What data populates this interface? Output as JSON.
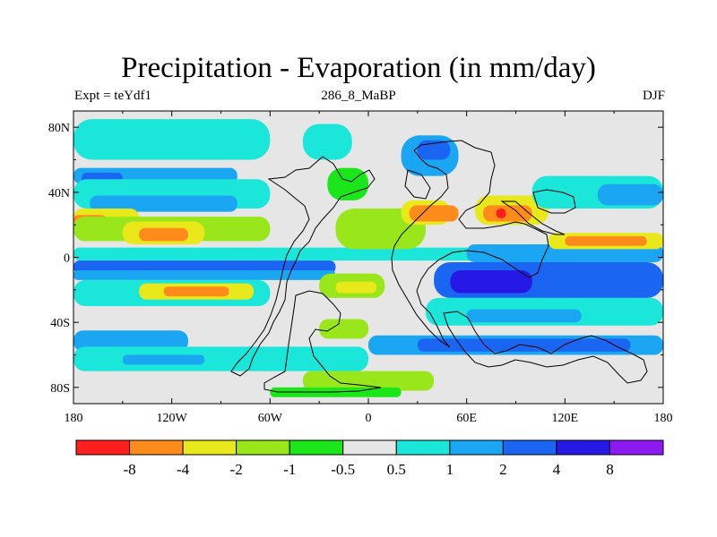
{
  "chart_data": {
    "type": "heatmap",
    "title": "Precipitation - Evaporation (in mm/day)",
    "left_string": "Expt = teYdf1",
    "center_string": "286_8_MaBP",
    "right_string": "DJF",
    "x_ticks": [
      {
        "value": -180,
        "label": "180"
      },
      {
        "value": -120,
        "label": "120W"
      },
      {
        "value": -60,
        "label": "60W"
      },
      {
        "value": 0,
        "label": "0"
      },
      {
        "value": 60,
        "label": "60E"
      },
      {
        "value": 120,
        "label": "120E"
      },
      {
        "value": 180,
        "label": "180"
      }
    ],
    "y_ticks": [
      {
        "value": 80,
        "label": "80N"
      },
      {
        "value": 40,
        "label": "40N"
      },
      {
        "value": 0,
        "label": "0"
      },
      {
        "value": -40,
        "label": "40S"
      },
      {
        "value": -80,
        "label": "80S"
      }
    ],
    "xlim": [
      -180,
      180
    ],
    "ylim": [
      -90,
      90
    ],
    "colorbar": {
      "colors": [
        "#ff1f1f",
        "#ff8c1a",
        "#e8e81a",
        "#99e61a",
        "#1ae61a",
        "#e6e6e6",
        "#1ae6d9",
        "#1aa6f2",
        "#1a66f2",
        "#2619e6",
        "#8c19f2"
      ],
      "labels": [
        "-8",
        "-4",
        "-2",
        "-1",
        "-0.5",
        "0.5",
        "1",
        "2",
        "4",
        "8"
      ]
    },
    "field": {
      "background": "#e6e6e6",
      "description_note": "",
      "regions": [
        {
          "level": "1",
          "lon": [
            -180,
            -60
          ],
          "lat": [
            60,
            85
          ]
        },
        {
          "level": "2",
          "lon": [
            -180,
            -80
          ],
          "lat": [
            45,
            55
          ]
        },
        {
          "level": "4",
          "lon": [
            -175,
            -150
          ],
          "lat": [
            45,
            52
          ]
        },
        {
          "level": "1",
          "lon": [
            -180,
            -60
          ],
          "lat": [
            30,
            48
          ]
        },
        {
          "level": "2",
          "lon": [
            -170,
            -80
          ],
          "lat": [
            28,
            38
          ]
        },
        {
          "level": "-2",
          "lon": [
            -180,
            -140
          ],
          "lat": [
            18,
            30
          ]
        },
        {
          "level": "-4",
          "lon": [
            -180,
            -160
          ],
          "lat": [
            20,
            26
          ]
        },
        {
          "level": "-1",
          "lon": [
            -180,
            -60
          ],
          "lat": [
            10,
            25
          ]
        },
        {
          "level": "-2",
          "lon": [
            -150,
            -100
          ],
          "lat": [
            8,
            22
          ]
        },
        {
          "level": "-4",
          "lon": [
            -140,
            -110
          ],
          "lat": [
            10,
            18
          ]
        },
        {
          "level": "1",
          "lon": [
            -180,
            180
          ],
          "lat": [
            -2,
            6
          ]
        },
        {
          "level": "4",
          "lon": [
            -180,
            -20
          ],
          "lat": [
            -10,
            -2
          ]
        },
        {
          "level": "2",
          "lon": [
            -180,
            -20
          ],
          "lat": [
            -14,
            -8
          ]
        },
        {
          "level": "1",
          "lon": [
            -180,
            -60
          ],
          "lat": [
            -30,
            -14
          ]
        },
        {
          "level": "-2",
          "lon": [
            -140,
            -70
          ],
          "lat": [
            -26,
            -16
          ]
        },
        {
          "level": "-4",
          "lon": [
            -125,
            -85
          ],
          "lat": [
            -24,
            -18
          ]
        },
        {
          "level": "2",
          "lon": [
            -180,
            -110
          ],
          "lat": [
            -58,
            -45
          ]
        },
        {
          "level": "1",
          "lon": [
            -180,
            0
          ],
          "lat": [
            -70,
            -55
          ]
        },
        {
          "level": "2",
          "lon": [
            -150,
            -100
          ],
          "lat": [
            -66,
            -60
          ]
        },
        {
          "level": "-1",
          "lon": [
            -30,
            10
          ],
          "lat": [
            -25,
            -10
          ]
        },
        {
          "level": "-2",
          "lon": [
            -20,
            5
          ],
          "lat": [
            -22,
            -15
          ]
        },
        {
          "level": "-1",
          "lon": [
            -30,
            0
          ],
          "lat": [
            -50,
            -38
          ]
        },
        {
          "level": "1",
          "lon": [
            -40,
            -10
          ],
          "lat": [
            60,
            82
          ]
        },
        {
          "level": "-0.5",
          "lon": [
            -25,
            0
          ],
          "lat": [
            35,
            55
          ]
        },
        {
          "level": "-1",
          "lon": [
            -20,
            35
          ],
          "lat": [
            5,
            30
          ]
        },
        {
          "level": "-2",
          "lon": [
            20,
            50
          ],
          "lat": [
            20,
            35
          ]
        },
        {
          "level": "-4",
          "lon": [
            25,
            55
          ],
          "lat": [
            22,
            32
          ]
        },
        {
          "level": "2",
          "lon": [
            20,
            55
          ],
          "lat": [
            50,
            75
          ]
        },
        {
          "level": "4",
          "lon": [
            30,
            50
          ],
          "lat": [
            60,
            72
          ]
        },
        {
          "level": "-2",
          "lon": [
            65,
            110
          ],
          "lat": [
            20,
            38
          ]
        },
        {
          "level": "-4",
          "lon": [
            70,
            100
          ],
          "lat": [
            22,
            32
          ]
        },
        {
          "level": "-8",
          "lon": [
            78,
            84
          ],
          "lat": [
            24,
            30
          ]
        },
        {
          "level": "1",
          "lon": [
            100,
            180
          ],
          "lat": [
            30,
            50
          ]
        },
        {
          "level": "2",
          "lon": [
            140,
            180
          ],
          "lat": [
            32,
            45
          ]
        },
        {
          "level": "2",
          "lon": [
            60,
            180
          ],
          "lat": [
            -3,
            8
          ]
        },
        {
          "level": "4",
          "lon": [
            40,
            180
          ],
          "lat": [
            -25,
            -3
          ]
        },
        {
          "level": "8",
          "lon": [
            50,
            100
          ],
          "lat": [
            -22,
            -8
          ]
        },
        {
          "level": "-2",
          "lon": [
            110,
            180
          ],
          "lat": [
            5,
            15
          ]
        },
        {
          "level": "-4",
          "lon": [
            120,
            170
          ],
          "lat": [
            7,
            13
          ]
        },
        {
          "level": "1",
          "lon": [
            35,
            180
          ],
          "lat": [
            -42,
            -25
          ]
        },
        {
          "level": "2",
          "lon": [
            60,
            130
          ],
          "lat": [
            -40,
            -32
          ]
        },
        {
          "level": "2",
          "lon": [
            0,
            180
          ],
          "lat": [
            -60,
            -48
          ]
        },
        {
          "level": "4",
          "lon": [
            30,
            160
          ],
          "lat": [
            -58,
            -50
          ]
        },
        {
          "level": "-1",
          "lon": [
            -40,
            40
          ],
          "lat": [
            -82,
            -70
          ]
        },
        {
          "level": "-0.5",
          "lon": [
            -60,
            20
          ],
          "lat": [
            -86,
            -80
          ]
        }
      ]
    }
  }
}
